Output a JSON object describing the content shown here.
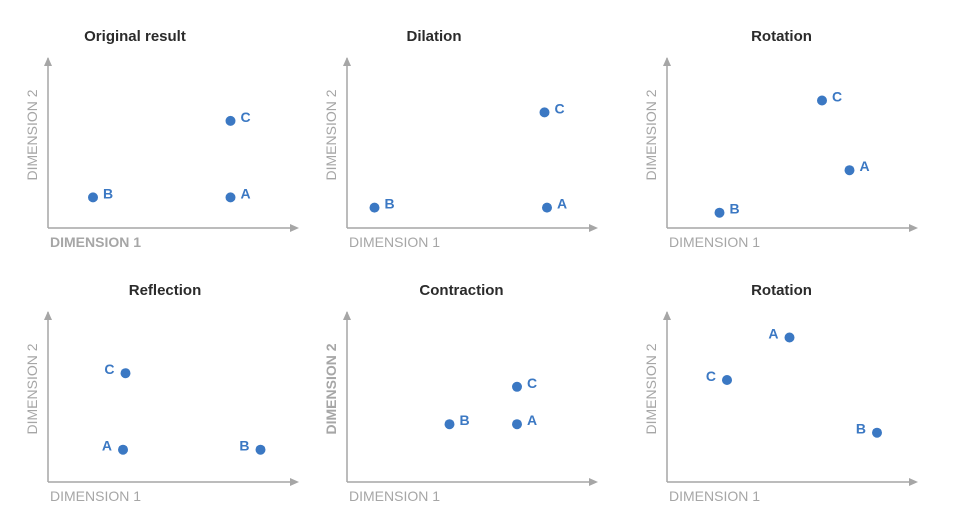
{
  "chart_data": [
    {
      "type": "scatter",
      "title": "Original result",
      "xlabel": "DIMENSION 1",
      "ylabel": "DIMENSION 2",
      "xlim": [
        0,
        10
      ],
      "ylim": [
        0,
        10
      ],
      "grid": false,
      "points": [
        {
          "label": "B",
          "x": 1.8,
          "y": 1.8,
          "label_position": "right"
        },
        {
          "label": "C",
          "x": 7.3,
          "y": 6.3,
          "label_position": "right"
        },
        {
          "label": "A",
          "x": 7.3,
          "y": 1.8,
          "label_position": "right"
        }
      ]
    },
    {
      "type": "scatter",
      "title": "Dilation",
      "xlabel": "DIMENSION 1",
      "ylabel": "DIMENSION 2",
      "xlim": [
        0,
        10
      ],
      "ylim": [
        0,
        10
      ],
      "grid": false,
      "points": [
        {
          "label": "B",
          "x": 1.1,
          "y": 1.2,
          "label_position": "right"
        },
        {
          "label": "C",
          "x": 7.9,
          "y": 6.8,
          "label_position": "right"
        },
        {
          "label": "A",
          "x": 8.0,
          "y": 1.2,
          "label_position": "right"
        }
      ]
    },
    {
      "type": "scatter",
      "title": "Rotation",
      "xlabel": "DIMENSION 1",
      "ylabel": "DIMENSION 2",
      "xlim": [
        0,
        10
      ],
      "ylim": [
        0,
        10
      ],
      "grid": false,
      "points": [
        {
          "label": "C",
          "x": 6.2,
          "y": 7.5,
          "label_position": "right"
        },
        {
          "label": "A",
          "x": 7.3,
          "y": 3.4,
          "label_position": "right"
        },
        {
          "label": "B",
          "x": 2.1,
          "y": 0.9,
          "label_position": "right"
        }
      ]
    },
    {
      "type": "scatter",
      "title": "Reflection",
      "xlabel": "DIMENSION 1",
      "ylabel": "DIMENSION 2",
      "xlim": [
        0,
        10
      ],
      "ylim": [
        0,
        10
      ],
      "grid": false,
      "points": [
        {
          "label": "C",
          "x": 3.1,
          "y": 6.4,
          "label_position": "left"
        },
        {
          "label": "A",
          "x": 3.0,
          "y": 1.9,
          "label_position": "left"
        },
        {
          "label": "B",
          "x": 8.5,
          "y": 1.9,
          "label_position": "left"
        }
      ]
    },
    {
      "type": "scatter",
      "title": "Contraction",
      "xlabel": "DIMENSION 1",
      "ylabel": "DIMENSION 2",
      "xlim": [
        0,
        10
      ],
      "ylim": [
        0,
        10
      ],
      "grid": false,
      "points": [
        {
          "label": "C",
          "x": 6.8,
          "y": 5.6,
          "label_position": "right"
        },
        {
          "label": "B",
          "x": 4.1,
          "y": 3.4,
          "label_position": "right"
        },
        {
          "label": "A",
          "x": 6.8,
          "y": 3.4,
          "label_position": "right"
        }
      ]
    },
    {
      "type": "scatter",
      "title": "Rotation",
      "xlabel": "DIMENSION 1",
      "ylabel": "DIMENSION 2",
      "xlim": [
        0,
        10
      ],
      "ylim": [
        0,
        10
      ],
      "grid": false,
      "points": [
        {
          "label": "A",
          "x": 4.9,
          "y": 8.5,
          "label_position": "left"
        },
        {
          "label": "C",
          "x": 2.4,
          "y": 6.0,
          "label_position": "left"
        },
        {
          "label": "B",
          "x": 8.4,
          "y": 2.9,
          "label_position": "left"
        }
      ]
    }
  ],
  "colors": {
    "point": "#3b78c3",
    "axis": "#a6a6a6",
    "axis_label": "#a6a6a6",
    "title": "#2b2b2b"
  }
}
